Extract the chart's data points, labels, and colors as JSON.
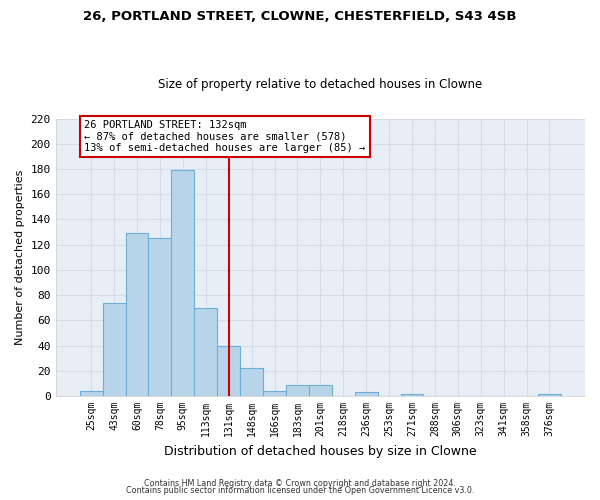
{
  "title": "26, PORTLAND STREET, CLOWNE, CHESTERFIELD, S43 4SB",
  "subtitle": "Size of property relative to detached houses in Clowne",
  "xlabel": "Distribution of detached houses by size in Clowne",
  "ylabel": "Number of detached properties",
  "bar_labels": [
    "25sqm",
    "43sqm",
    "60sqm",
    "78sqm",
    "95sqm",
    "113sqm",
    "131sqm",
    "148sqm",
    "166sqm",
    "183sqm",
    "201sqm",
    "218sqm",
    "236sqm",
    "253sqm",
    "271sqm",
    "288sqm",
    "306sqm",
    "323sqm",
    "341sqm",
    "358sqm",
    "376sqm"
  ],
  "bar_values": [
    4,
    74,
    129,
    125,
    179,
    70,
    40,
    22,
    4,
    9,
    9,
    0,
    3,
    0,
    2,
    0,
    0,
    0,
    0,
    0,
    2
  ],
  "bar_color": "#b8d4e8",
  "bar_edge_color": "#6baed6",
  "vline_x_index": 6,
  "vline_color": "#cc0000",
  "annotation_title": "26 PORTLAND STREET: 132sqm",
  "annotation_line1": "← 87% of detached houses are smaller (578)",
  "annotation_line2": "13% of semi-detached houses are larger (85) →",
  "annotation_box_color": "#ffffff",
  "annotation_box_edge": "#cc0000",
  "ylim": [
    0,
    220
  ],
  "yticks": [
    0,
    20,
    40,
    60,
    80,
    100,
    120,
    140,
    160,
    180,
    200,
    220
  ],
  "grid_color": "#d5dce8",
  "footnote1": "Contains HM Land Registry data © Crown copyright and database right 2024.",
  "footnote2": "Contains public sector information licensed under the Open Government Licence v3.0.",
  "bg_color": "#e8eef5"
}
